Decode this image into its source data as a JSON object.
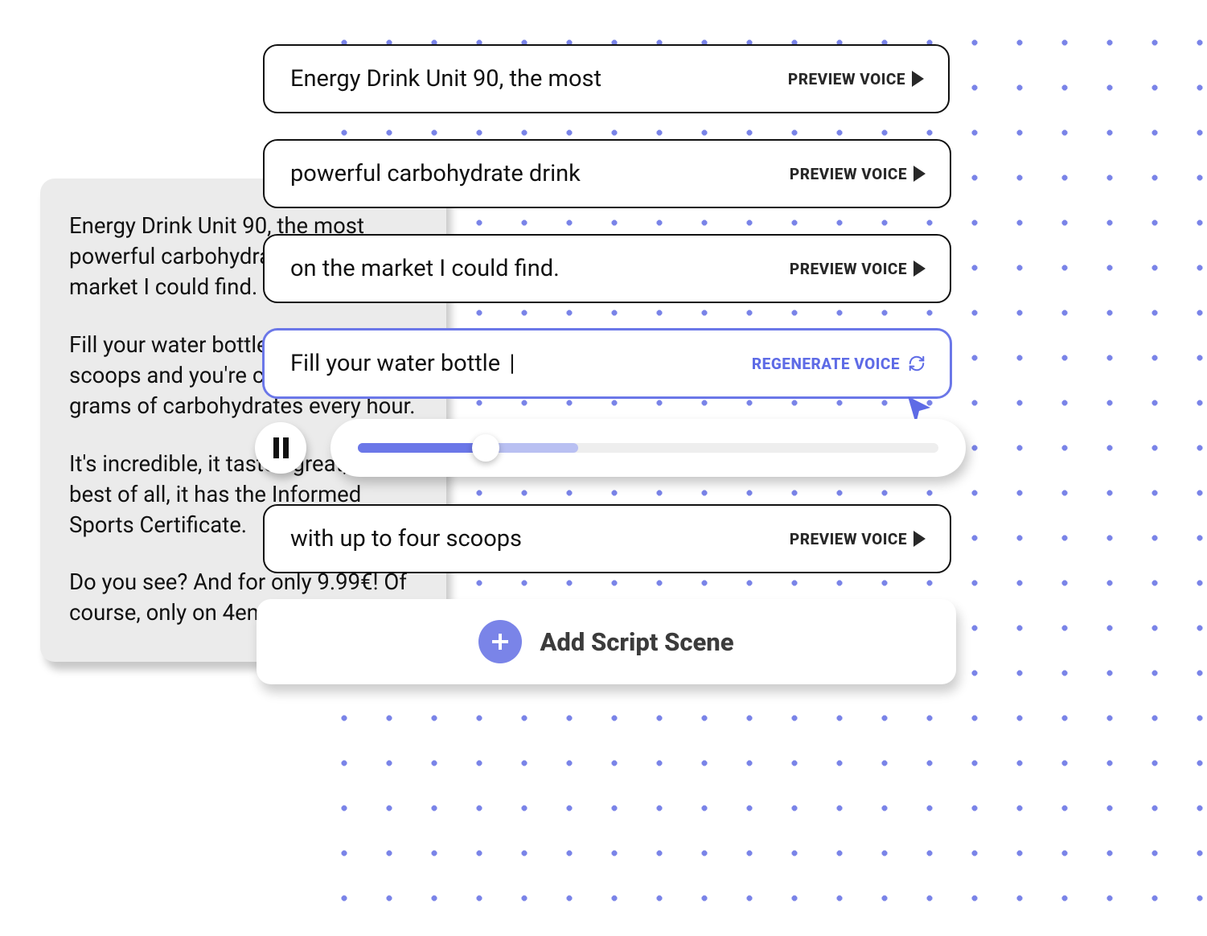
{
  "colors": {
    "accent": "#6b77e8",
    "accent_light": "#7a84e8",
    "dot": "#7a84e8",
    "card_border": "#111111",
    "text": "#111111",
    "script_bg": "#ebebeb",
    "track_bg": "#eeeeee",
    "buffered": "#b9c0f2"
  },
  "script": {
    "paragraphs": [
      "Energy Drink Unit 90, the most powerful carbohydrate drink on the market I could find.",
      "Fill your water bottle with up to four scoops and you're covered for grams of carbohydrates every hour.",
      "It's incredible, it tastes great, and best of all, it has the Informed Sports Certificate.",
      "Do you see? And for only 9.99€! Of course, only on 4endurance.com"
    ]
  },
  "scenes": [
    {
      "text": "Energy Drink Unit 90, the most",
      "button": "PREVIEW VOICE",
      "kind": "preview",
      "active": false
    },
    {
      "text": "powerful carbohydrate drink",
      "button": "PREVIEW VOICE",
      "kind": "preview",
      "active": false
    },
    {
      "text": "on the market I could find.",
      "button": "PREVIEW VOICE",
      "kind": "preview",
      "active": false
    },
    {
      "text": "Fill your water bottle ",
      "button": "REGENERATE VOICE",
      "kind": "regenerate",
      "active": true
    },
    {
      "text": "with up to four scoops",
      "button": "PREVIEW VOICE",
      "kind": "preview",
      "active": false
    }
  ],
  "player": {
    "played_pct": 22,
    "buffered_pct": 38,
    "state": "paused"
  },
  "addScene": {
    "label": "Add  Script Scene"
  }
}
